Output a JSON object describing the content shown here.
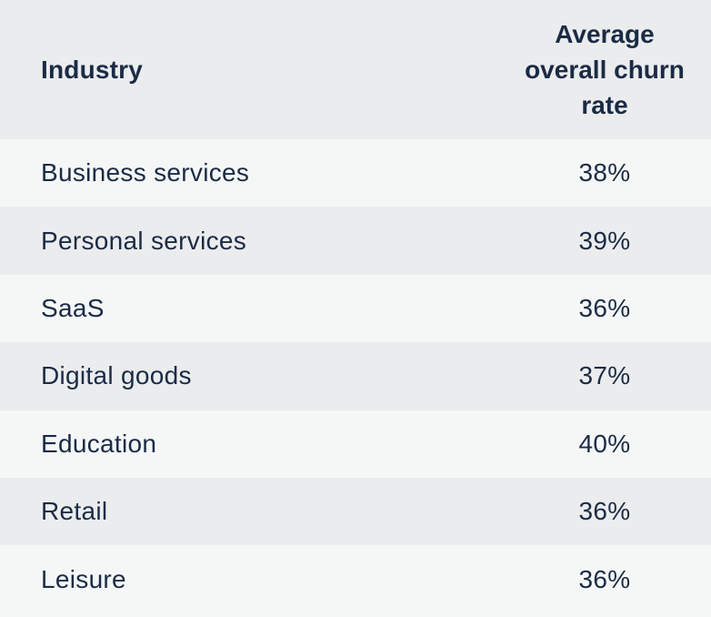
{
  "table": {
    "headers": {
      "industry": "Industry",
      "rate_line1": "Average",
      "rate_line2": "overall churn",
      "rate_line3": "rate"
    },
    "rows": [
      {
        "industry": "Business services",
        "rate": "38%"
      },
      {
        "industry": "Personal services",
        "rate": "39%"
      },
      {
        "industry": "SaaS",
        "rate": "36%"
      },
      {
        "industry": "Digital goods",
        "rate": "37%"
      },
      {
        "industry": "Education",
        "rate": "40%"
      },
      {
        "industry": "Retail",
        "rate": "36%"
      },
      {
        "industry": "Leisure",
        "rate": "36%"
      }
    ]
  },
  "colors": {
    "text": "#1b2b45",
    "row_light": "#f5f7f7",
    "row_dark": "#ebecee"
  }
}
